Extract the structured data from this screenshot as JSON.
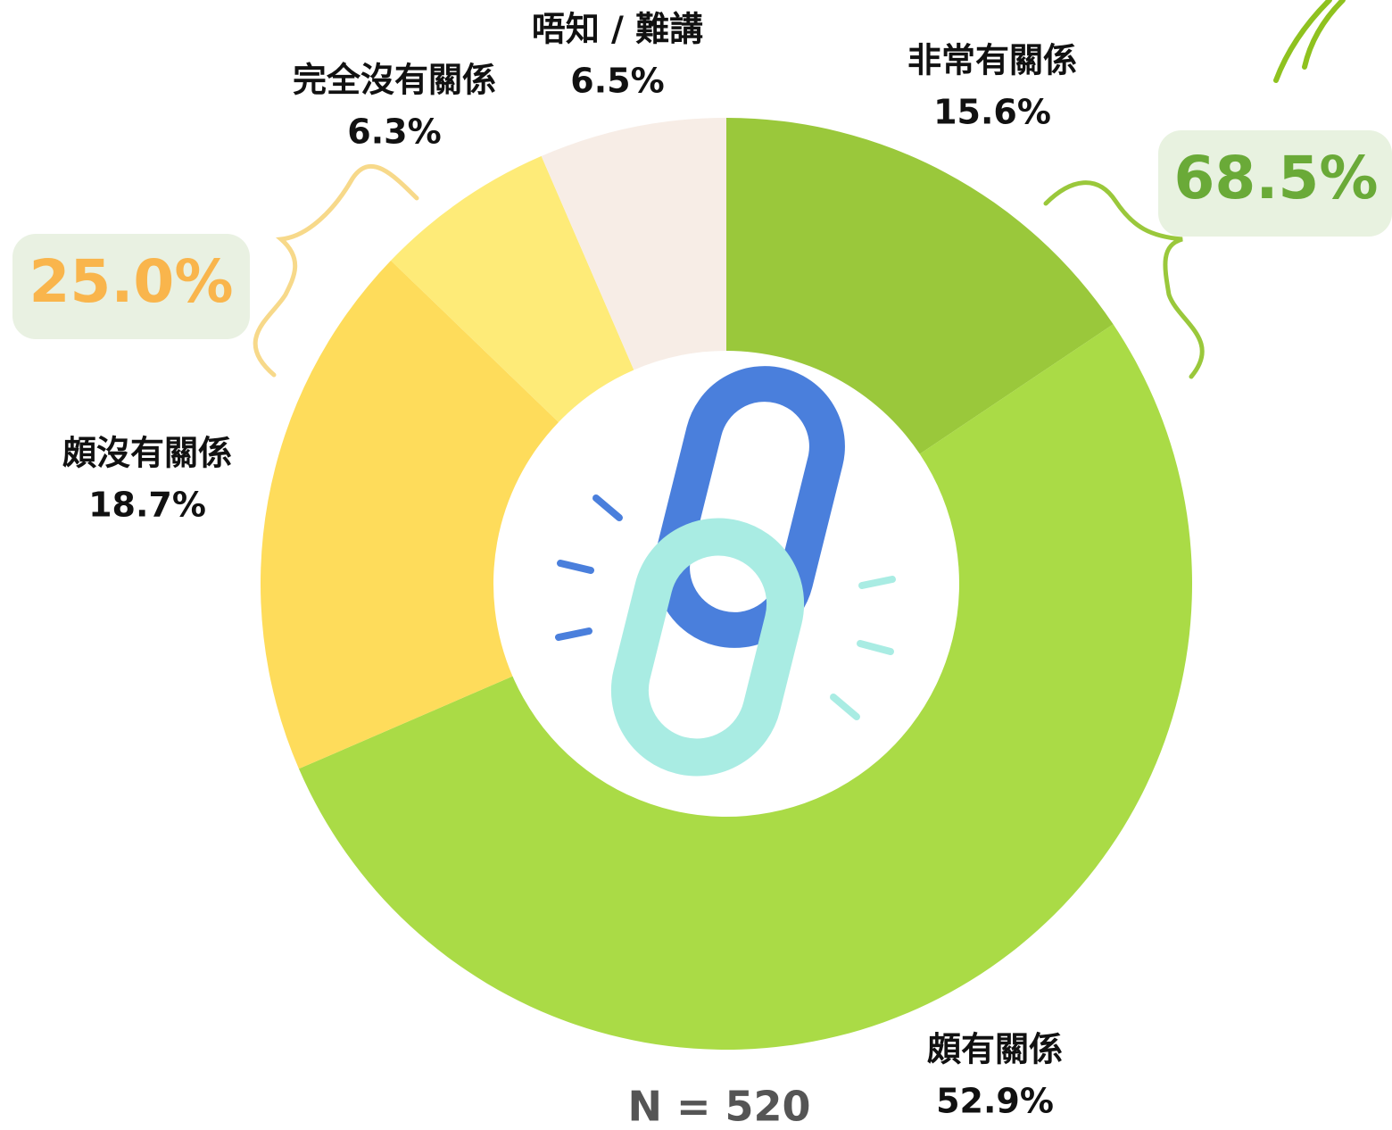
{
  "chart_data": {
    "type": "pie",
    "donut": true,
    "categories": [
      "非常有關係",
      "頗有關係",
      "頗沒有關係",
      "完全沒有關係",
      "唔知 / 難講"
    ],
    "values": [
      15.6,
      52.9,
      18.7,
      6.3,
      6.5
    ],
    "value_labels": [
      "15.6%",
      "52.9%",
      "18.7%",
      "6.3%",
      "6.5%"
    ],
    "colors": [
      "#9ac83b",
      "#aadb46",
      "#fedc5b",
      "#feeb78",
      "#f7ede6"
    ],
    "annotations": [
      "68.5%",
      "25.0%",
      "N = 520"
    ]
  }
}
